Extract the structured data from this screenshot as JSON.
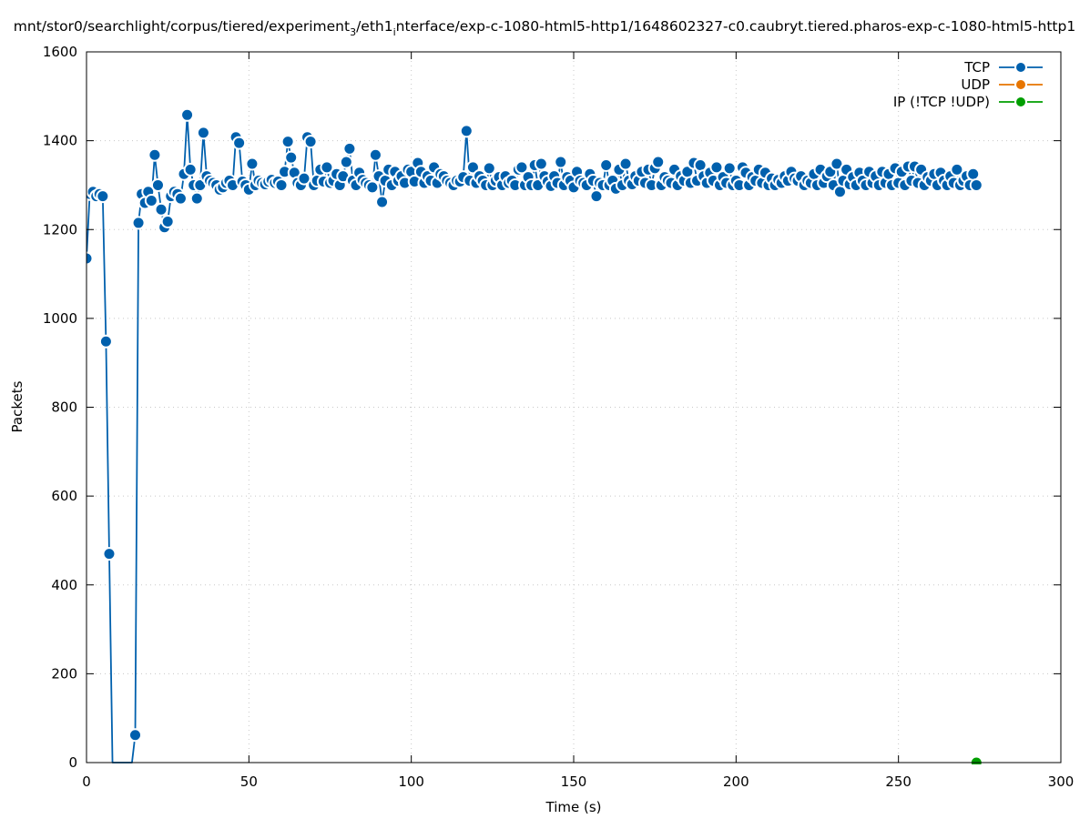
{
  "chart_data": {
    "type": "line",
    "title_prefix": "mnt/stor0/searchlight/corpus/tiered/experiment",
    "title_sub1": "3",
    "title_mid": "/eth1",
    "title_sub2": "i",
    "title_suffix": "nterface/exp-c-1080-html5-http1/1648602327-c0.caubryt.tiered.pharos-exp-c-1080-html5-http1",
    "xlabel": "Time (s)",
    "ylabel": "Packets",
    "xlim": [
      0,
      300
    ],
    "ylim": [
      0,
      1600
    ],
    "xticks": [
      0,
      50,
      100,
      150,
      200,
      250,
      300
    ],
    "yticks": [
      0,
      200,
      400,
      600,
      800,
      1000,
      1200,
      1400,
      1600
    ],
    "xtick_labels": [
      "0",
      "50",
      "100",
      "150",
      "200",
      "250",
      "300"
    ],
    "ytick_labels": [
      "0",
      "200",
      "400",
      "600",
      "800",
      "1000",
      "1200",
      "1400",
      "1600"
    ],
    "grid": true,
    "legend_position": "top-right",
    "series": [
      {
        "name": "TCP",
        "color": "#0060ad",
        "x": [
          0,
          1,
          2,
          3,
          4,
          5,
          6,
          7,
          8,
          9,
          10,
          11,
          12,
          13,
          14,
          15,
          16,
          17,
          18,
          19,
          20,
          21,
          22,
          23,
          24,
          25,
          26,
          27,
          28,
          29,
          30,
          31,
          32,
          33,
          34,
          35,
          36,
          37,
          38,
          39,
          40,
          41,
          42,
          43,
          44,
          45,
          46,
          47,
          48,
          49,
          50,
          51,
          52,
          53,
          54,
          55,
          56,
          57,
          58,
          59,
          60,
          61,
          62,
          63,
          64,
          65,
          66,
          67,
          68,
          69,
          70,
          71,
          72,
          73,
          74,
          75,
          76,
          77,
          78,
          79,
          80,
          81,
          82,
          83,
          84,
          85,
          86,
          87,
          88,
          89,
          90,
          91,
          92,
          93,
          94,
          95,
          96,
          97,
          98,
          99,
          100,
          101,
          102,
          103,
          104,
          105,
          106,
          107,
          108,
          109,
          110,
          111,
          112,
          113,
          114,
          115,
          116,
          117,
          118,
          119,
          120,
          121,
          122,
          123,
          124,
          125,
          126,
          127,
          128,
          129,
          130,
          131,
          132,
          133,
          134,
          135,
          136,
          137,
          138,
          139,
          140,
          141,
          142,
          143,
          144,
          145,
          146,
          147,
          148,
          149,
          150,
          151,
          152,
          153,
          154,
          155,
          156,
          157,
          158,
          159,
          160,
          161,
          162,
          163,
          164,
          165,
          166,
          167,
          168,
          169,
          170,
          171,
          172,
          173,
          174,
          175,
          176,
          177,
          178,
          179,
          180,
          181,
          182,
          183,
          184,
          185,
          186,
          187,
          188,
          189,
          190,
          191,
          192,
          193,
          194,
          195,
          196,
          197,
          198,
          199,
          200,
          201,
          202,
          203,
          204,
          205,
          206,
          207,
          208,
          209,
          210,
          211,
          212,
          213,
          214,
          215,
          216,
          217,
          218,
          219,
          220,
          221,
          222,
          223,
          224,
          225,
          226,
          227,
          228,
          229,
          230,
          231,
          232,
          233,
          234,
          235,
          236,
          237,
          238,
          239,
          240,
          241,
          242,
          243,
          244,
          245,
          246,
          247,
          248,
          249,
          250,
          251,
          252,
          253,
          254,
          255,
          256,
          257,
          258,
          259,
          260,
          261,
          262,
          263,
          264,
          265,
          266,
          267,
          268,
          269,
          270,
          271,
          272,
          273,
          274
        ],
        "y": [
          1135,
          1280,
          1285,
          1275,
          1280,
          1275,
          948,
          470,
          0,
          0,
          0,
          0,
          0,
          0,
          0,
          62,
          1215,
          1280,
          1260,
          1285,
          1265,
          1368,
          1300,
          1245,
          1205,
          1218,
          1275,
          1285,
          1280,
          1270,
          1325,
          1458,
          1335,
          1300,
          1270,
          1300,
          1418,
          1320,
          1310,
          1305,
          1300,
          1290,
          1295,
          1305,
          1310,
          1300,
          1408,
          1395,
          1308,
          1300,
          1290,
          1348,
          1300,
          1310,
          1305,
          1302,
          1308,
          1312,
          1305,
          1308,
          1300,
          1330,
          1398,
          1362,
          1328,
          1305,
          1300,
          1315,
          1408,
          1398,
          1300,
          1310,
          1335,
          1308,
          1340,
          1305,
          1310,
          1325,
          1300,
          1320,
          1352,
          1382,
          1310,
          1300,
          1328,
          1312,
          1305,
          1300,
          1295,
          1368,
          1320,
          1262,
          1310,
          1335,
          1300,
          1330,
          1310,
          1320,
          1305,
          1335,
          1330,
          1308,
          1350,
          1330,
          1305,
          1320,
          1310,
          1340,
          1305,
          1325,
          1320,
          1310,
          1305,
          1300,
          1310,
          1308,
          1318,
          1422,
          1310,
          1340,
          1305,
          1320,
          1310,
          1300,
          1338,
          1300,
          1310,
          1318,
          1300,
          1320,
          1305,
          1310,
          1300,
          1335,
          1340,
          1300,
          1318,
          1300,
          1345,
          1300,
          1348,
          1320,
          1308,
          1298,
          1320,
          1305,
          1352,
          1300,
          1318,
          1310,
          1295,
          1330,
          1310,
          1305,
          1300,
          1325,
          1310,
          1275,
          1305,
          1300,
          1345,
          1300,
          1310,
          1292,
          1335,
          1300,
          1348,
          1310,
          1302,
          1320,
          1310,
          1330,
          1305,
          1335,
          1300,
          1338,
          1352,
          1300,
          1318,
          1310,
          1305,
          1335,
          1300,
          1320,
          1310,
          1330,
          1305,
          1350,
          1310,
          1345,
          1320,
          1305,
          1328,
          1310,
          1340,
          1300,
          1318,
          1305,
          1338,
          1300,
          1310,
          1300,
          1340,
          1328,
          1300,
          1318,
          1310,
          1335,
          1305,
          1328,
          1300,
          1315,
          1300,
          1312,
          1305,
          1320,
          1310,
          1330,
          1315,
          1310,
          1320,
          1300,
          1310,
          1305,
          1325,
          1300,
          1335,
          1305,
          1320,
          1330,
          1300,
          1348,
          1285,
          1310,
          1335,
          1302,
          1318,
          1300,
          1328,
          1310,
          1300,
          1330,
          1305,
          1320,
          1300,
          1330,
          1305,
          1325,
          1300,
          1338,
          1305,
          1330,
          1300,
          1342,
          1310,
          1342,
          1305,
          1335,
          1300,
          1318,
          1310,
          1325,
          1300,
          1328,
          1310,
          1300,
          1320,
          1305,
          1335,
          1300,
          1310,
          1320,
          1300,
          1325,
          1300
        ]
      },
      {
        "name": "UDP",
        "color": "#e77500",
        "x": [],
        "y": []
      },
      {
        "name": "IP (!TCP  !UDP)",
        "color": "#009e00",
        "x": [
          274
        ],
        "y": [
          0
        ]
      }
    ]
  }
}
